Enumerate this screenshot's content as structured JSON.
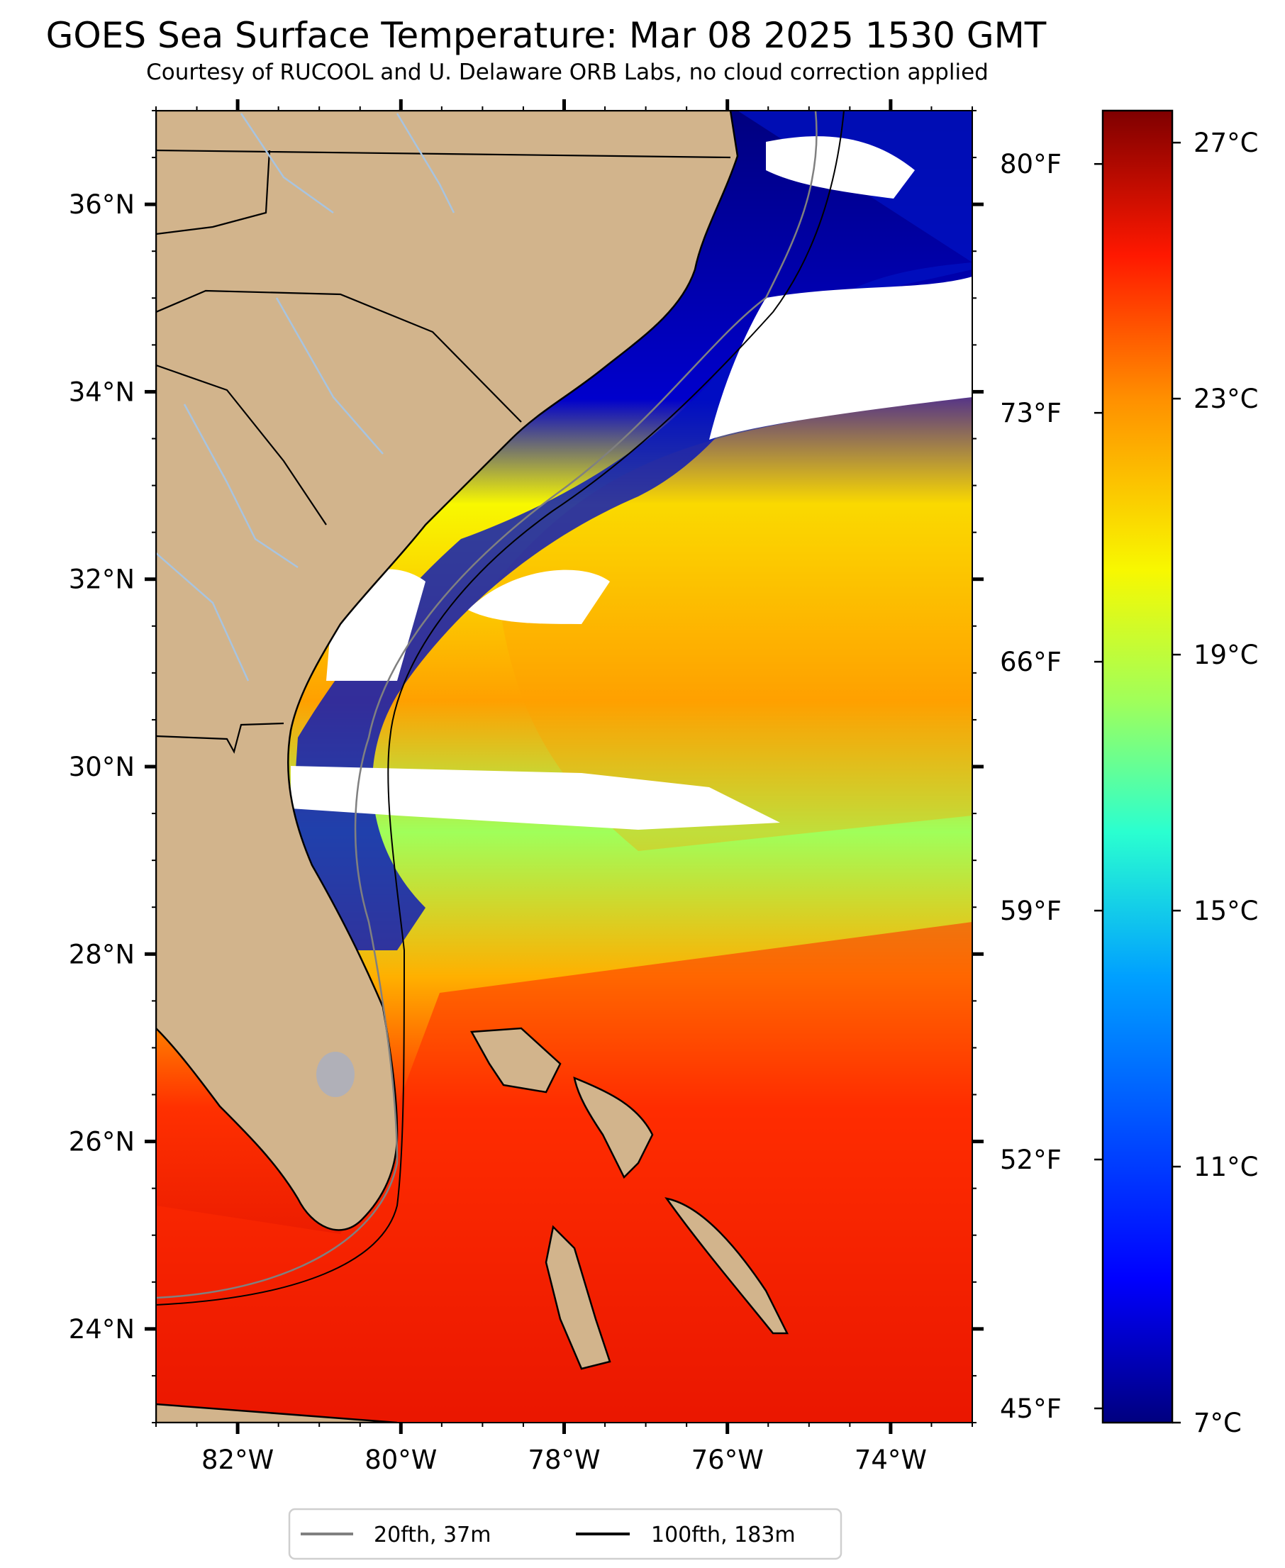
{
  "title": "GOES Sea Surface Temperature: Mar 08 2025 1530 GMT",
  "subtitle": "Courtesy of RUCOOL and U. Delaware ORB Labs, no cloud correction applied",
  "map": {
    "projection": "lat-lon",
    "lon_range": [
      -83.0,
      -73.0
    ],
    "lat_range": [
      23.0,
      37.0
    ],
    "lon_ticks": [
      "82°W",
      "80°W",
      "78°W",
      "76°W",
      "74°W"
    ],
    "lat_ticks": [
      "36°N",
      "34°N",
      "32°N",
      "30°N",
      "28°N",
      "26°N",
      "24°N"
    ],
    "colors": {
      "land": "#d2b48c",
      "cloud": "#ffffff",
      "coast": "#000000",
      "rivers": "#a8c4e0",
      "iso20": "#808080",
      "iso100": "#000000"
    }
  },
  "colorbar": {
    "colormap": "jet",
    "celsius_range": [
      7,
      27.5
    ],
    "celsius_labels": [
      "27°C",
      "23°C",
      "19°C",
      "15°C",
      "11°C",
      "7°C"
    ],
    "fahrenheit_labels": [
      "80°F",
      "73°F",
      "66°F",
      "59°F",
      "52°F",
      "45°F"
    ]
  },
  "legend": {
    "items": [
      {
        "label": "20fth, 37m",
        "color": "#808080"
      },
      {
        "label": "100fth, 183m",
        "color": "#000000"
      }
    ]
  }
}
